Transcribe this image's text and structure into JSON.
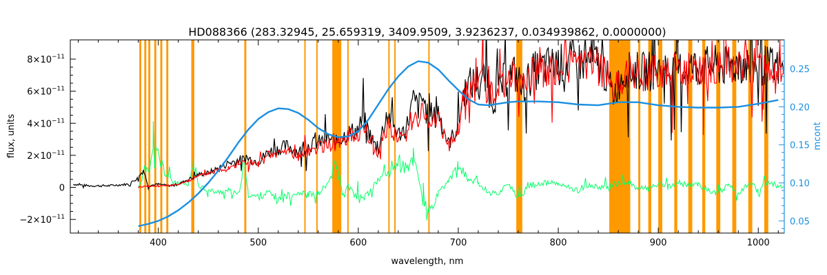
{
  "chart_data": {
    "type": "line",
    "title": "HD088366    (283.32945, 25.659319, 3409.9509, 3.9236237, 0.034939862, 0.0000000)",
    "xlabel": "wavelength, nm",
    "ylabel": "flux, units",
    "ylabel_right": "mcont",
    "xlim": [
      312,
      1026
    ],
    "ylim": [
      -2.85e-11,
      9.2e-11
    ],
    "ylim_right": [
      0.034,
      0.288
    ],
    "x_ticks": [
      400,
      500,
      600,
      700,
      800,
      900,
      1000
    ],
    "x_tick_labels": [
      "400",
      "500",
      "600",
      "700",
      "800",
      "900",
      "1000"
    ],
    "y_ticks": [
      -2e-11,
      0,
      2e-11,
      4e-11,
      6e-11,
      8e-11
    ],
    "y_tick_labels": [
      "−2×10",
      "0",
      "2×10",
      "4×10",
      "6×10",
      "8×10"
    ],
    "y_tick_exponent": "−11",
    "y_right_ticks": [
      0.05,
      0.1,
      0.15,
      0.2,
      0.25
    ],
    "y_right_tick_labels": [
      "0.05",
      "0.10",
      "0.15",
      "0.20",
      "0.25"
    ],
    "grid": false,
    "colors": {
      "observed": "#000000",
      "model": "#ff0000",
      "masked": "#ffff00",
      "residual": "#00ff66",
      "mcont": "#1a8fe0",
      "bands": "#ff9900",
      "right_axis": "#1a8fe0"
    },
    "mask_bands": [
      [
        381,
        383
      ],
      [
        386,
        388
      ],
      [
        390,
        392
      ],
      [
        396,
        398
      ],
      [
        402,
        404
      ],
      [
        408,
        410
      ],
      [
        433,
        436
      ],
      [
        486,
        488
      ],
      [
        546,
        547
      ],
      [
        558,
        559
      ],
      [
        574,
        583
      ],
      [
        589,
        590
      ],
      [
        630,
        631
      ],
      [
        636,
        637
      ],
      [
        670,
        671
      ],
      [
        758,
        764
      ],
      [
        851,
        872
      ],
      [
        880,
        882
      ],
      [
        890,
        893
      ],
      [
        900,
        904
      ],
      [
        916,
        919
      ],
      [
        930,
        934
      ],
      [
        944,
        947
      ],
      [
        958,
        962
      ],
      [
        974,
        978
      ],
      [
        990,
        994
      ],
      [
        1006,
        1010
      ]
    ],
    "mcont": {
      "x": [
        380,
        390,
        400,
        410,
        420,
        430,
        440,
        450,
        460,
        470,
        480,
        490,
        500,
        510,
        520,
        530,
        540,
        550,
        560,
        570,
        580,
        590,
        600,
        610,
        620,
        630,
        640,
        650,
        660,
        670,
        680,
        690,
        700,
        710,
        720,
        730,
        740,
        750,
        760,
        780,
        800,
        820,
        840,
        860,
        880,
        900,
        920,
        940,
        960,
        980,
        1000,
        1020
      ],
      "y": [
        0.043,
        0.046,
        0.05,
        0.056,
        0.064,
        0.074,
        0.086,
        0.1,
        0.116,
        0.134,
        0.153,
        0.17,
        0.184,
        0.193,
        0.198,
        0.197,
        0.192,
        0.183,
        0.172,
        0.164,
        0.16,
        0.161,
        0.168,
        0.183,
        0.203,
        0.223,
        0.24,
        0.253,
        0.26,
        0.258,
        0.249,
        0.235,
        0.222,
        0.21,
        0.203,
        0.202,
        0.204,
        0.206,
        0.207,
        0.207,
        0.206,
        0.203,
        0.202,
        0.206,
        0.206,
        0.202,
        0.2,
        0.199,
        0.199,
        0.2,
        0.204,
        0.209
      ]
    },
    "observed": {
      "x": [
        315,
        330,
        350,
        370,
        380,
        385,
        390,
        400,
        410,
        420,
        430,
        440,
        450,
        460,
        470,
        480,
        490,
        500,
        510,
        520,
        530,
        540,
        550,
        560,
        570,
        578,
        585,
        590,
        600,
        605,
        615,
        620,
        625,
        630,
        640,
        648,
        655,
        660,
        665,
        670,
        678,
        690,
        700,
        705,
        710,
        718,
        725,
        735,
        745,
        755,
        765,
        775,
        785,
        795,
        805,
        815,
        825,
        835,
        845,
        855,
        865,
        875,
        885,
        895,
        905,
        915,
        925,
        935,
        945,
        955,
        965,
        975,
        985,
        995,
        1005,
        1015,
        1025
      ],
      "y": [
        2e-12,
        1e-12,
        1e-12,
        2e-12,
        6e-12,
        1.1e-11,
        1e-12,
        2e-12,
        1e-12,
        2e-12,
        5e-12,
        8e-12,
        9e-12,
        1.2e-11,
        1.5e-11,
        1.7e-11,
        1.8e-11,
        1.6e-11,
        2.2e-11,
        2.4e-11,
        2.6e-11,
        2.2e-11,
        2.6e-11,
        2.8e-11,
        3e-11,
        2.8e-11,
        3.2e-11,
        3.4e-11,
        3.6e-11,
        4.3e-11,
        2.8e-11,
        2.3e-11,
        3.8e-11,
        4.5e-11,
        3.3e-11,
        3.7e-11,
        5.4e-11,
        5e-11,
        5.6e-11,
        4.2e-11,
        5.2e-11,
        2.7e-11,
        3.8e-11,
        5.8e-11,
        6.4e-11,
        6.6e-11,
        6.9e-11,
        5.4e-11,
        6.6e-11,
        7.2e-11,
        6.2e-11,
        7.2e-11,
        7.5e-11,
        7.6e-11,
        7.7e-11,
        7.9e-11,
        7.8e-11,
        7.9e-11,
        7.4e-11,
        5.8e-11,
        7.1e-11,
        7.3e-11,
        7.2e-11,
        7.3e-11,
        7.4e-11,
        7.2e-11,
        7.4e-11,
        7.5e-11,
        7.5e-11,
        7.6e-11,
        7.5e-11,
        7.6e-11,
        7.7e-11,
        7.6e-11,
        7.6e-11,
        7.5e-11,
        7.4e-11
      ]
    },
    "model": {
      "x": [
        380,
        390,
        400,
        410,
        420,
        430,
        440,
        450,
        460,
        470,
        480,
        490,
        500,
        510,
        520,
        530,
        540,
        550,
        560,
        570,
        578,
        585,
        590,
        600,
        605,
        615,
        620,
        625,
        630,
        640,
        648,
        655,
        660,
        665,
        670,
        678,
        690,
        700,
        705,
        710,
        718,
        725,
        735,
        745,
        755,
        765,
        775,
        785,
        795,
        805,
        815,
        825,
        835,
        845,
        855,
        865,
        875,
        885,
        895,
        905,
        915,
        925,
        935,
        945,
        955,
        965,
        975,
        985,
        995,
        1005,
        1015,
        1025
      ],
      "y": [
        0.0,
        5e-13,
        1e-12,
        1e-12,
        2e-12,
        4e-12,
        7e-12,
        9e-12,
        1.1e-11,
        1.3e-11,
        1.5e-11,
        1.6e-11,
        1.4e-11,
        2e-11,
        2.1e-11,
        2.3e-11,
        1.9e-11,
        2.3e-11,
        2.5e-11,
        2.7e-11,
        2.6e-11,
        3e-11,
        3.2e-11,
        3.3e-11,
        3.8e-11,
        2.6e-11,
        2.1e-11,
        3.3e-11,
        3.9e-11,
        3e-11,
        3.3e-11,
        4.5e-11,
        4.3e-11,
        4.9e-11,
        3.8e-11,
        4.7e-11,
        2.5e-11,
        3.5e-11,
        5.4e-11,
        6.1e-11,
        6.3e-11,
        6.7e-11,
        5.6e-11,
        6.5e-11,
        7e-11,
        6.3e-11,
        7.1e-11,
        7.3e-11,
        7.4e-11,
        7.5e-11,
        7.7e-11,
        7.6e-11,
        7.7e-11,
        7.4e-11,
        6.2e-11,
        7e-11,
        7.2e-11,
        7.1e-11,
        7.2e-11,
        7.3e-11,
        7.2e-11,
        7.3e-11,
        7.4e-11,
        7.4e-11,
        7.5e-11,
        7.4e-11,
        7.5e-11,
        7.5e-11,
        7.5e-11,
        7.6e-11,
        7.5e-11,
        7.5e-11
      ]
    },
    "residual": {
      "x": [
        380,
        385,
        390,
        395,
        400,
        405,
        410,
        420,
        430,
        435,
        440,
        450,
        460,
        470,
        480,
        486,
        490,
        500,
        510,
        520,
        530,
        540,
        550,
        560,
        570,
        578,
        585,
        590,
        600,
        610,
        620,
        630,
        640,
        650,
        655,
        660,
        665,
        670,
        680,
        690,
        700,
        710,
        720,
        730,
        740,
        750,
        760,
        770,
        780,
        790,
        800,
        810,
        820,
        830,
        840,
        850,
        860,
        870,
        880,
        890,
        900,
        910,
        920,
        930,
        940,
        950,
        960,
        970,
        980,
        990,
        1000,
        1010,
        1020,
        1025
      ],
      "y": [
        0.0,
        8e-12,
        1.5e-11,
        2e-11,
        1.8e-11,
        1.2e-11,
        6e-12,
        2e-12,
        1e-12,
        1.5e-11,
        2e-12,
        -2e-12,
        -3e-12,
        -2e-12,
        -5e-12,
        1.5e-11,
        -4e-12,
        -6e-12,
        -3e-12,
        -8e-12,
        -5e-12,
        -3e-12,
        -5e-12,
        -4e-12,
        3e-12,
        1.4e-11,
        -6e-12,
        1e-12,
        -8e-12,
        -4e-12,
        5e-12,
        9e-12,
        1.6e-11,
        1e-11,
        2e-11,
        8e-12,
        -1e-11,
        -1.8e-11,
        -4e-12,
        4e-12,
        1.2e-11,
        5e-12,
        3e-12,
        -3e-12,
        -4e-12,
        3e-12,
        -8e-12,
        1e-12,
        2e-12,
        3e-12,
        2e-12,
        0.0,
        -2e-12,
        1e-12,
        0.0,
        1e-12,
        2e-12,
        3e-12,
        0.0,
        -1e-12,
        2e-12,
        0.0,
        3e-12,
        1e-12,
        2e-12,
        -2e-12,
        -3e-12,
        1e-12,
        -4e-12,
        2e-12,
        0.0,
        3e-12,
        1e-12,
        0.0
      ]
    }
  }
}
